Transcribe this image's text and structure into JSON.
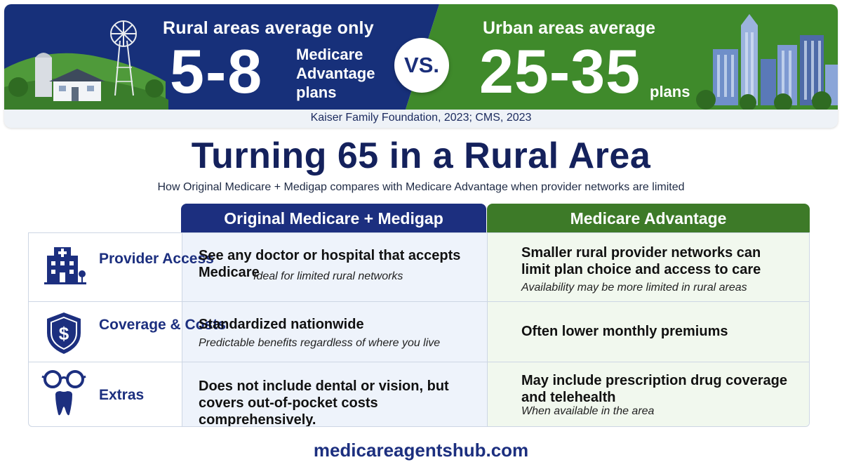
{
  "banner": {
    "rural_lead": "Rural areas average only",
    "rural_number": "5-8",
    "rural_unit": "Medicare Advantage plans",
    "vs": "VS.",
    "urban_lead": "Urban areas average",
    "urban_number": "25-35",
    "urban_unit": "plans",
    "source": "Kaiser Family Foundation, 2023; CMS, 2023",
    "colors": {
      "rural": "#17307a",
      "urban": "#3f8a2b"
    }
  },
  "title": "Turning 65 in a Rural Area",
  "subtitle": "How Original Medicare + Medigap compares with Medicare Advantage when provider networks are limited",
  "table": {
    "headers": [
      "Original Medicare + Medigap",
      "Medicare Advantage"
    ],
    "rows": [
      {
        "label": "Provider Access",
        "icon": "hospital-icon",
        "om_main": "See any doctor or hospital that accepts Medicare",
        "om_note": "Ideal for limited rural networks",
        "ma_main": "Smaller rural provider networks can limit plan choice and access to care",
        "ma_note": "Availability may be more limited in rural areas"
      },
      {
        "label": "Coverage & Costs",
        "icon": "dollar-shield-icon",
        "om_main": "Standardized nationwide",
        "om_note": "Predictable benefits regardless of where you live",
        "ma_main": "Often lower monthly premiums",
        "ma_note": ""
      },
      {
        "label": "Extras",
        "icon": "glasses-tooth-icon",
        "om_main": "Does not include dental or vision, but covers out-of-pocket costs comprehensively.",
        "om_note": "",
        "ma_main": "May include prescription drug coverage and telehealth",
        "ma_note": "When available in the area"
      }
    ]
  },
  "footer": "medicareagentshub.com"
}
